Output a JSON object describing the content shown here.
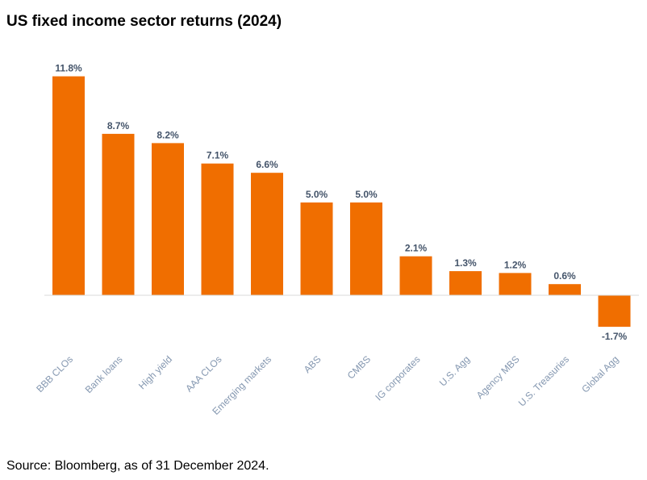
{
  "title": "US fixed income sector returns (2024)",
  "source": "Source: Bloomberg, as of 31 December 2024.",
  "colors": {
    "bar": "#F06E00",
    "baseline": "#D9D9D9",
    "value_label": "#44546A",
    "category_label": "#8497B0"
  },
  "chart_data": {
    "type": "bar",
    "title": "US fixed income sector returns (2024)",
    "xlabel": "",
    "ylabel": "",
    "ylim": [
      -1.7,
      11.8
    ],
    "grid": false,
    "legend": "none",
    "categories": [
      "BBB CLOs",
      "Bank loans",
      "High yield",
      "AAA CLOs",
      "Emerging markets",
      "ABS",
      "CMBS",
      "IG corporates",
      "U.S. Agg",
      "Agency MBS",
      "U.S. Treasuries",
      "Global Agg"
    ],
    "values": [
      11.8,
      8.7,
      8.2,
      7.1,
      6.6,
      5.0,
      5.0,
      2.1,
      1.3,
      1.2,
      0.6,
      -1.7
    ],
    "data_labels": [
      "11.8%",
      "8.7%",
      "8.2%",
      "7.1%",
      "6.6%",
      "5.0%",
      "5.0%",
      "2.1%",
      "1.3%",
      "1.2%",
      "0.6%",
      "-1.7%"
    ]
  }
}
